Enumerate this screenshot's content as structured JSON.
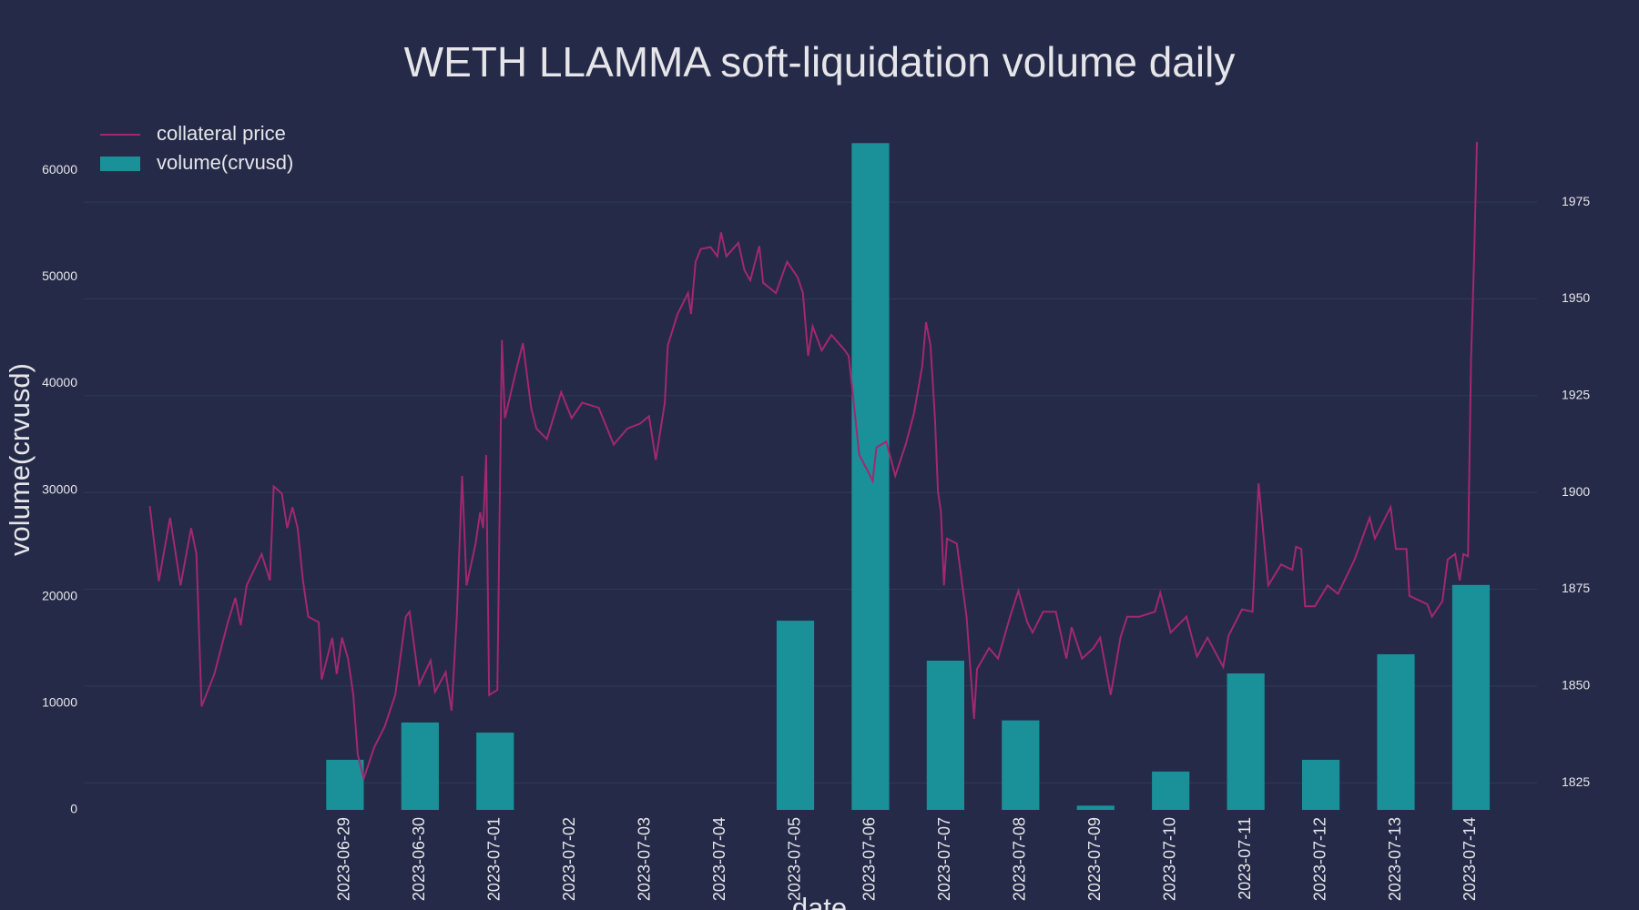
{
  "chart_data": {
    "type": "combo",
    "title": "WETH LLAMMA soft-liquidation volume daily",
    "xlabel": "date",
    "ylabel": "volume(crvusd)",
    "categories": [
      "2023-06-29",
      "2023-06-30",
      "2023-07-01",
      "2023-07-02",
      "2023-07-03",
      "2023-07-04",
      "2023-07-05",
      "2023-07-06",
      "2023-07-07",
      "2023-07-08",
      "2023-07-09",
      "2023-07-10",
      "2023-07-11",
      "2023-07-12",
      "2023-07-13",
      "2023-07-14"
    ],
    "xlim": [
      -3.48,
      15.88
    ],
    "ylim": [
      0,
      63000
    ],
    "yticks": [
      0,
      10000,
      20000,
      30000,
      40000,
      50000,
      60000
    ],
    "y2lim": [
      1818,
      1991.5
    ],
    "y2ticks": [
      1825,
      1850,
      1875,
      1900,
      1925,
      1950,
      1975
    ],
    "grid": true,
    "legend": "upper left",
    "series": [
      {
        "name": "collateral price",
        "type": "line",
        "axis": "y2",
        "color": "#a3286f",
        "x": [
          -2.6,
          -2.48,
          -2.33,
          -2.19,
          -2.05,
          -1.98,
          -1.91,
          -1.74,
          -1.56,
          -1.46,
          -1.39,
          -1.31,
          -1.11,
          -1.0,
          -0.95,
          -0.84,
          -0.77,
          -0.7,
          -0.63,
          -0.56,
          -0.49,
          -0.35,
          -0.31,
          -0.17,
          -0.11,
          -0.04,
          0.04,
          0.11,
          0.17,
          0.25,
          0.39,
          0.53,
          0.67,
          0.81,
          0.86,
          0.99,
          1.14,
          1.2,
          1.34,
          1.42,
          1.49,
          1.56,
          1.62,
          1.74,
          1.8,
          1.84,
          1.88,
          1.92,
          2.03,
          2.09,
          2.13,
          2.26,
          2.37,
          2.48,
          2.55,
          2.69,
          2.88,
          3.02,
          3.16,
          3.38,
          3.58,
          3.76,
          3.93,
          4.05,
          4.14,
          4.26,
          4.3,
          4.43,
          4.57,
          4.61,
          4.67,
          4.74,
          4.87,
          4.96,
          5.01,
          5.08,
          5.24,
          5.32,
          5.4,
          5.52,
          5.57,
          5.74,
          5.89,
          6.03,
          6.1,
          6.17,
          6.23,
          6.35,
          6.48,
          6.66,
          6.71,
          6.77,
          6.85,
          6.96,
          7.03,
          7.08,
          7.21,
          7.33,
          7.47,
          7.58,
          7.69,
          7.74,
          7.8,
          7.86,
          7.9,
          7.94,
          7.98,
          8.02,
          8.15,
          8.28,
          8.38,
          8.42,
          8.58,
          8.7,
          8.86,
          8.97,
          9.09,
          9.16,
          9.3,
          9.47,
          9.61,
          9.68,
          9.82,
          9.97,
          10.06,
          10.2,
          10.33,
          10.42,
          10.58,
          10.79,
          10.86,
          11.0,
          11.21,
          11.35,
          11.49,
          11.7,
          11.77,
          11.95,
          12.09,
          12.17,
          12.26,
          12.3,
          12.47,
          12.62,
          12.67,
          12.74,
          12.79,
          12.92,
          13.09,
          13.23,
          13.45,
          13.65,
          13.72,
          13.93,
          14.0,
          14.14,
          14.18,
          14.42,
          14.48,
          14.62,
          14.69,
          14.79,
          14.85,
          14.9,
          14.96,
          15.0,
          15.04,
          15.08
        ],
        "values": [
          1896.5,
          1877.1,
          1893.5,
          1876.0,
          1890.8,
          1884.1,
          1844.7,
          1853.1,
          1866.5,
          1872.8,
          1865.7,
          1876.0,
          1884.1,
          1877.3,
          1901.6,
          1899.7,
          1890.8,
          1896.2,
          1890.8,
          1877.3,
          1867.9,
          1866.5,
          1851.7,
          1862.5,
          1853.1,
          1862.5,
          1857.1,
          1847.7,
          1832.3,
          1826.1,
          1834.2,
          1839.6,
          1847.7,
          1867.9,
          1869.2,
          1850.4,
          1856.6,
          1848.5,
          1853.6,
          1843.6,
          1867.9,
          1904.3,
          1876.0,
          1886.8,
          1894.9,
          1890.8,
          1909.7,
          1847.7,
          1849.0,
          1939.4,
          1919.2,
          1929.9,
          1938.6,
          1921.9,
          1916.5,
          1913.8,
          1925.9,
          1919.2,
          1923.2,
          1921.9,
          1912.4,
          1916.5,
          1917.8,
          1919.7,
          1908.4,
          1923.2,
          1938.0,
          1946.1,
          1951.5,
          1946.1,
          1959.6,
          1962.9,
          1963.4,
          1961.0,
          1967.2,
          1961.0,
          1964.5,
          1957.5,
          1954.8,
          1963.7,
          1954.2,
          1951.5,
          1959.6,
          1955.6,
          1951.5,
          1935.3,
          1942.9,
          1936.7,
          1940.7,
          1936.7,
          1935.3,
          1924.6,
          1909.7,
          1905.7,
          1903.0,
          1911.6,
          1913.2,
          1904.3,
          1912.4,
          1920.5,
          1932.6,
          1944.0,
          1938.0,
          1919.2,
          1900.3,
          1894.9,
          1876.0,
          1888.1,
          1886.8,
          1867.9,
          1841.5,
          1854.4,
          1859.8,
          1857.1,
          1867.9,
          1874.6,
          1866.5,
          1863.8,
          1869.2,
          1869.2,
          1857.1,
          1865.2,
          1857.1,
          1859.8,
          1862.5,
          1847.7,
          1862.5,
          1867.9,
          1867.9,
          1869.2,
          1874.1,
          1863.8,
          1867.9,
          1857.6,
          1862.5,
          1854.9,
          1863.0,
          1869.8,
          1869.2,
          1902.4,
          1884.1,
          1876.0,
          1881.4,
          1880.0,
          1886.0,
          1885.4,
          1870.6,
          1870.6,
          1876.0,
          1873.8,
          1882.7,
          1893.5,
          1888.1,
          1896.2,
          1885.4,
          1885.4,
          1873.3,
          1871.1,
          1867.9,
          1871.9,
          1882.7,
          1884.1,
          1877.3,
          1884.1,
          1883.5,
          1934.0,
          1959.6,
          1990.6
        ]
      },
      {
        "name": "volume(crvusd)",
        "type": "bar",
        "color": "#1a9199",
        "values": [
          4700,
          8200,
          7250,
          0,
          0,
          0,
          17750,
          62550,
          14000,
          8400,
          400,
          3600,
          12800,
          4700,
          14600,
          21100
        ]
      }
    ]
  }
}
